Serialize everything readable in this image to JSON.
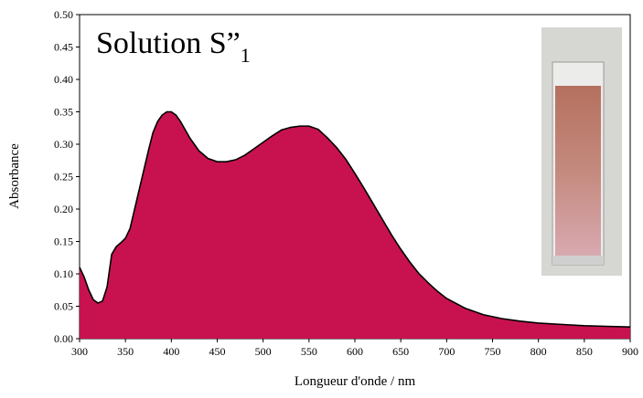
{
  "chart_data": {
    "type": "area",
    "title": {
      "text": "Solution S”",
      "subscript": "1"
    },
    "xlabel": "Longueur d'onde / nm",
    "ylabel": "Absorbance",
    "color": "#c8124f",
    "line_color": "#000000",
    "x": [
      300,
      305,
      310,
      315,
      320,
      325,
      330,
      335,
      340,
      345,
      350,
      355,
      360,
      365,
      370,
      375,
      380,
      385,
      390,
      395,
      400,
      405,
      410,
      420,
      430,
      440,
      450,
      460,
      470,
      480,
      490,
      500,
      510,
      520,
      530,
      540,
      550,
      560,
      570,
      580,
      590,
      600,
      610,
      620,
      630,
      640,
      650,
      660,
      670,
      680,
      690,
      700,
      720,
      740,
      760,
      780,
      800,
      825,
      850,
      875,
      900
    ],
    "values": [
      0.11,
      0.095,
      0.075,
      0.06,
      0.055,
      0.058,
      0.08,
      0.13,
      0.142,
      0.148,
      0.155,
      0.17,
      0.2,
      0.23,
      0.26,
      0.29,
      0.318,
      0.335,
      0.345,
      0.35,
      0.35,
      0.345,
      0.335,
      0.31,
      0.29,
      0.278,
      0.273,
      0.273,
      0.276,
      0.283,
      0.293,
      0.303,
      0.313,
      0.322,
      0.326,
      0.328,
      0.328,
      0.323,
      0.31,
      0.295,
      0.277,
      0.255,
      0.232,
      0.208,
      0.184,
      0.16,
      0.138,
      0.118,
      0.1,
      0.086,
      0.073,
      0.062,
      0.047,
      0.037,
      0.031,
      0.027,
      0.024,
      0.022,
      0.02,
      0.019,
      0.018
    ],
    "xlim": [
      300,
      900
    ],
    "xticks": [
      300,
      350,
      400,
      450,
      500,
      550,
      600,
      650,
      700,
      750,
      800,
      850,
      900
    ],
    "ylim": [
      0,
      0.5
    ],
    "yticks": [
      {
        "value": 0,
        "label": "0.00"
      },
      0.05,
      {
        "value": 0.1,
        "label": "0.10"
      },
      0.15,
      {
        "value": 0.2,
        "label": "0.20"
      },
      0.25,
      {
        "value": 0.3,
        "label": "0.30"
      },
      0.35,
      {
        "value": 0.4,
        "label": "0.40"
      },
      0.45,
      {
        "value": 0.5,
        "label": "0.50"
      }
    ]
  }
}
